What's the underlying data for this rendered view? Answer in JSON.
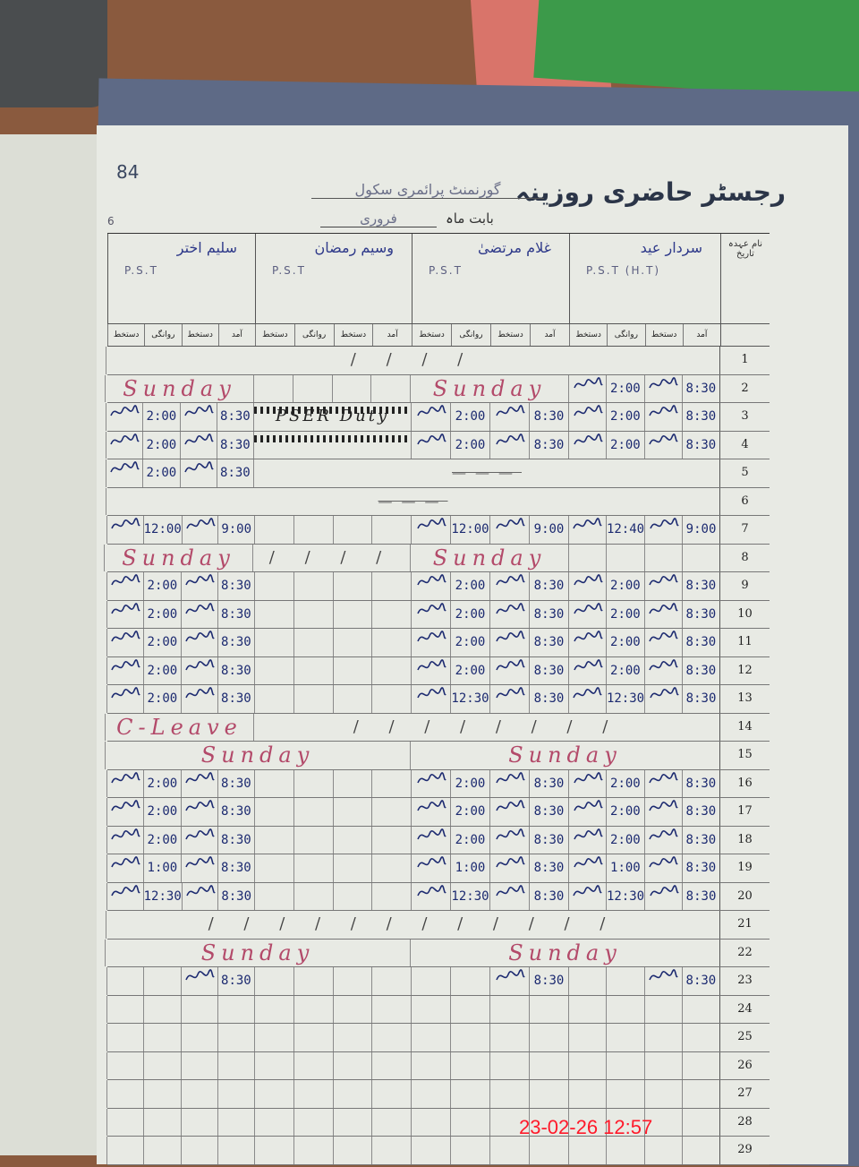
{
  "register": {
    "page_number": "84",
    "title": "رجسٹر حاضری روزینہ",
    "school": "گورنمنٹ پرائمری سکول",
    "month_label": "بابت ماہ",
    "month_value": "فروری",
    "left_note": "6",
    "date_header": "نام عہدہ تاریخ",
    "sub_headers": [
      "آمد",
      "دستخط",
      "روانگی",
      "دستخط"
    ],
    "staff": [
      {
        "name": "سردار عید",
        "role": "P.S.T (H.T)"
      },
      {
        "name": "غلام مرتضیٰ",
        "role": "P.S.T"
      },
      {
        "name": "وسیم رمضان",
        "role": "P.S.T"
      },
      {
        "name": "سلیم اختر",
        "role": "P.S.T"
      }
    ],
    "rows": [
      {
        "date": "1",
        "spans": [
          {
            "from": 0,
            "to": 3,
            "text": "/ / / /",
            "kind": "slash"
          }
        ]
      },
      {
        "date": "2",
        "cells": [
          [
            "8:30",
            "sign",
            "2:00",
            "sign"
          ]
        ],
        "spans": [
          {
            "from": 1,
            "to": 1,
            "text": "Sunday",
            "kind": "word"
          },
          {
            "from": 3,
            "to": 3,
            "text": "Sunday",
            "kind": "word"
          }
        ]
      },
      {
        "date": "3",
        "cells": [
          [
            "8:30",
            "sign",
            "2:00",
            "sign"
          ],
          [
            "8:30",
            "sign",
            "2:00",
            "sign"
          ],
          null,
          [
            "8:30",
            "sign",
            "2:00",
            "sign"
          ]
        ],
        "spans": [
          {
            "from": 2,
            "to": 2,
            "text": "PSER Duty",
            "kind": "blk"
          }
        ]
      },
      {
        "date": "4",
        "cells": [
          [
            "8:30",
            "sign",
            "2:00",
            "sign"
          ],
          [
            "8:30",
            "sign",
            "2:00",
            "sign"
          ],
          null,
          [
            "8:30",
            "sign",
            "2:00",
            "sign"
          ]
        ],
        "spans": [
          {
            "from": 2,
            "to": 2,
            "text": "",
            "kind": "blk"
          }
        ]
      },
      {
        "date": "5",
        "cells": [
          null,
          null,
          null,
          [
            "8:30",
            "sign",
            "2:00",
            "sign"
          ]
        ],
        "spans": [
          {
            "from": 0,
            "to": 2,
            "text": "———",
            "kind": "strike"
          }
        ]
      },
      {
        "date": "6",
        "spans": [
          {
            "from": 0,
            "to": 3,
            "text": "———",
            "kind": "strike"
          }
        ]
      },
      {
        "date": "7",
        "cells": [
          [
            "9:00",
            "sign",
            "12:40",
            "sign"
          ],
          [
            "9:00",
            "sign",
            "12:00",
            "sign"
          ],
          null,
          [
            "9:00",
            "sign",
            "12:00",
            "sign"
          ]
        ]
      },
      {
        "date": "8",
        "spans": [
          {
            "from": 1,
            "to": 1,
            "text": "Sunday",
            "kind": "word"
          },
          {
            "from": 2,
            "to": 2,
            "text": "/ / / /",
            "kind": "slash"
          },
          {
            "from": 3,
            "to": 3,
            "text": "Sunday",
            "kind": "word"
          }
        ]
      },
      {
        "date": "9",
        "cells": [
          [
            "8:30",
            "sign",
            "2:00",
            "sign"
          ],
          [
            "8:30",
            "sign",
            "2:00",
            "sign"
          ],
          null,
          [
            "8:30",
            "sign",
            "2:00",
            "sign"
          ]
        ]
      },
      {
        "date": "10",
        "cells": [
          [
            "8:30",
            "sign",
            "2:00",
            "sign"
          ],
          [
            "8:30",
            "sign",
            "2:00",
            "sign"
          ],
          null,
          [
            "8:30",
            "sign",
            "2:00",
            "sign"
          ]
        ]
      },
      {
        "date": "11",
        "cells": [
          [
            "8:30",
            "sign",
            "2:00",
            "sign"
          ],
          [
            "8:30",
            "sign",
            "2:00",
            "sign"
          ],
          null,
          [
            "8:30",
            "sign",
            "2:00",
            "sign"
          ]
        ]
      },
      {
        "date": "12",
        "cells": [
          [
            "8:30",
            "sign",
            "2:00",
            "sign"
          ],
          [
            "8:30",
            "sign",
            "2:00",
            "sign"
          ],
          null,
          [
            "8:30",
            "sign",
            "2:00",
            "sign"
          ]
        ]
      },
      {
        "date": "13",
        "cells": [
          [
            "8:30",
            "sign",
            "12:30",
            "sign"
          ],
          [
            "8:30",
            "sign",
            "12:30",
            "sign"
          ],
          null,
          [
            "8:30",
            "sign",
            "2:00",
            "sign"
          ]
        ]
      },
      {
        "date": "14",
        "spans": [
          {
            "from": 0,
            "to": 2,
            "text": "/ / / / / / / /",
            "kind": "slash"
          },
          {
            "from": 3,
            "to": 3,
            "text": "C-Leave",
            "kind": "word"
          }
        ]
      },
      {
        "date": "15",
        "spans": [
          {
            "from": 0,
            "to": 1,
            "text": "Sunday",
            "kind": "word"
          },
          {
            "from": 2,
            "to": 3,
            "text": "Sunday",
            "kind": "word"
          }
        ]
      },
      {
        "date": "16",
        "cells": [
          [
            "8:30",
            "sign",
            "2:00",
            "sign"
          ],
          [
            "8:30",
            "sign",
            "2:00",
            "sign"
          ],
          null,
          [
            "8:30",
            "sign",
            "2:00",
            "sign"
          ]
        ]
      },
      {
        "date": "17",
        "cells": [
          [
            "8:30",
            "sign",
            "2:00",
            "sign"
          ],
          [
            "8:30",
            "sign",
            "2:00",
            "sign"
          ],
          null,
          [
            "8:30",
            "sign",
            "2:00",
            "sign"
          ]
        ]
      },
      {
        "date": "18",
        "cells": [
          [
            "8:30",
            "sign",
            "2:00",
            "sign"
          ],
          [
            "8:30",
            "sign",
            "2:00",
            "sign"
          ],
          null,
          [
            "8:30",
            "sign",
            "2:00",
            "sign"
          ]
        ]
      },
      {
        "date": "19",
        "cells": [
          [
            "8:30",
            "sign",
            "1:00",
            "sign"
          ],
          [
            "8:30",
            "sign",
            "1:00",
            "sign"
          ],
          null,
          [
            "8:30",
            "sign",
            "1:00",
            "sign"
          ]
        ]
      },
      {
        "date": "20",
        "cells": [
          [
            "8:30",
            "sign",
            "12:30",
            "sign"
          ],
          [
            "8:30",
            "sign",
            "12:30",
            "sign"
          ],
          null,
          [
            "8:30",
            "sign",
            "12:30",
            "sign"
          ]
        ]
      },
      {
        "date": "21",
        "spans": [
          {
            "from": 0,
            "to": 3,
            "text": "/ / / / / / / / / / / /",
            "kind": "slash"
          }
        ]
      },
      {
        "date": "22",
        "spans": [
          {
            "from": 0,
            "to": 1,
            "text": "Sunday",
            "kind": "word"
          },
          {
            "from": 2,
            "to": 3,
            "text": "Sunday",
            "kind": "word"
          }
        ]
      },
      {
        "date": "23",
        "cells": [
          [
            "8:30",
            "sign",
            "",
            ""
          ],
          [
            "8:30",
            "sign",
            "",
            ""
          ],
          null,
          [
            "8:30",
            "sign",
            "",
            ""
          ]
        ]
      },
      {
        "date": "24"
      },
      {
        "date": "25"
      },
      {
        "date": "26"
      },
      {
        "date": "27"
      },
      {
        "date": "28"
      },
      {
        "date": "29"
      }
    ]
  },
  "camera_timestamp": "23-02-26  12:57"
}
